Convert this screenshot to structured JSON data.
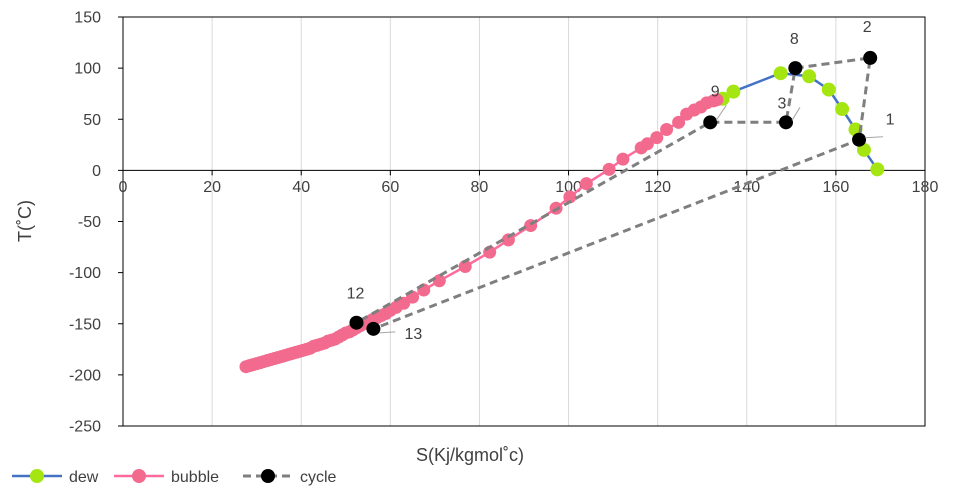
{
  "chart_data": {
    "type": "scatter",
    "xlabel": "S(Kj/kgmol˚c)",
    "ylabel": "T(˚C)",
    "xlim": [
      0,
      180
    ],
    "ylim": [
      -250,
      150
    ],
    "x_ticks": [
      0,
      20,
      40,
      60,
      80,
      100,
      120,
      140,
      160,
      180
    ],
    "y_ticks": [
      150,
      100,
      50,
      0,
      -50,
      -100,
      -150,
      -200,
      -250
    ],
    "grid": "vertical",
    "legend_position": "bottom-left",
    "series": [
      {
        "name": "dew",
        "line_color": "#4472c4",
        "marker_color": "#a5e612",
        "points": [
          [
            134.6,
            70
          ],
          [
            137,
            77
          ],
          [
            147.6,
            95
          ],
          [
            154,
            92
          ],
          [
            158.4,
            79
          ],
          [
            161.4,
            60
          ],
          [
            164.4,
            40
          ],
          [
            166.3,
            20
          ],
          [
            169.3,
            1
          ]
        ]
      },
      {
        "name": "bubble",
        "line_color": "#ff6b9d",
        "marker_color": "#f26b8e",
        "points": [
          [
            27.6,
            -192
          ],
          [
            28.4,
            -191
          ],
          [
            29.2,
            -190
          ],
          [
            30,
            -189
          ],
          [
            30.8,
            -188
          ],
          [
            31.6,
            -187
          ],
          [
            32.4,
            -186
          ],
          [
            33.2,
            -185
          ],
          [
            34,
            -184
          ],
          [
            34.8,
            -183
          ],
          [
            35.6,
            -182
          ],
          [
            36.4,
            -181
          ],
          [
            37.2,
            -180
          ],
          [
            38,
            -179
          ],
          [
            38.8,
            -178
          ],
          [
            39.6,
            -177
          ],
          [
            40.4,
            -176
          ],
          [
            41.2,
            -175
          ],
          [
            42,
            -174
          ],
          [
            42.8,
            -172
          ],
          [
            43.6,
            -171
          ],
          [
            44.4,
            -170
          ],
          [
            45.2,
            -169
          ],
          [
            46,
            -167
          ],
          [
            46.8,
            -166
          ],
          [
            47.6,
            -165
          ],
          [
            48.4,
            -163
          ],
          [
            49.2,
            -161
          ],
          [
            50,
            -159
          ],
          [
            50.8,
            -158
          ],
          [
            51.6,
            -156
          ],
          [
            52.4,
            -154
          ],
          [
            53.2,
            -152
          ],
          [
            54,
            -150
          ],
          [
            55,
            -148
          ],
          [
            56,
            -146
          ],
          [
            57,
            -144
          ],
          [
            58,
            -142
          ],
          [
            59,
            -140
          ],
          [
            60,
            -137
          ],
          [
            61.3,
            -134
          ],
          [
            63,
            -130
          ],
          [
            65,
            -124
          ],
          [
            67.5,
            -117
          ],
          [
            71,
            -108
          ],
          [
            76.8,
            -94
          ],
          [
            82.3,
            -80
          ],
          [
            86.5,
            -68
          ],
          [
            91.5,
            -54
          ],
          [
            97.2,
            -37
          ],
          [
            100.3,
            -26
          ],
          [
            104,
            -13
          ],
          [
            109.1,
            1
          ],
          [
            112.2,
            11
          ],
          [
            116.3,
            22
          ],
          [
            117.7,
            26
          ],
          [
            119.8,
            32
          ],
          [
            122,
            40
          ],
          [
            124.7,
            47
          ],
          [
            126.5,
            55
          ],
          [
            128.2,
            59
          ],
          [
            129.7,
            62
          ],
          [
            131,
            66
          ],
          [
            132.5,
            68
          ],
          [
            133.3,
            69
          ]
        ]
      },
      {
        "name": "cycle",
        "line_color": "#7f7f7f",
        "marker_color": "#000000",
        "points": [
          [
            52.4,
            -149
          ],
          [
            56.2,
            -155
          ],
          [
            165.2,
            30
          ],
          [
            167.7,
            110
          ],
          [
            150.9,
            100
          ],
          [
            148.8,
            47
          ],
          [
            131.8,
            47
          ],
          [
            52.4,
            -149
          ]
        ]
      }
    ],
    "point_labels": [
      {
        "text": "1",
        "x": 165.2,
        "y": 30
      },
      {
        "text": "2",
        "x": 167.7,
        "y": 110
      },
      {
        "text": "8",
        "x": 150.9,
        "y": 100
      },
      {
        "text": "3",
        "x": 148.8,
        "y": 47
      },
      {
        "text": "9",
        "x": 131.8,
        "y": 47
      },
      {
        "text": "12",
        "x": 52.4,
        "y": -149
      },
      {
        "text": "13",
        "x": 56.2,
        "y": -155
      }
    ]
  }
}
